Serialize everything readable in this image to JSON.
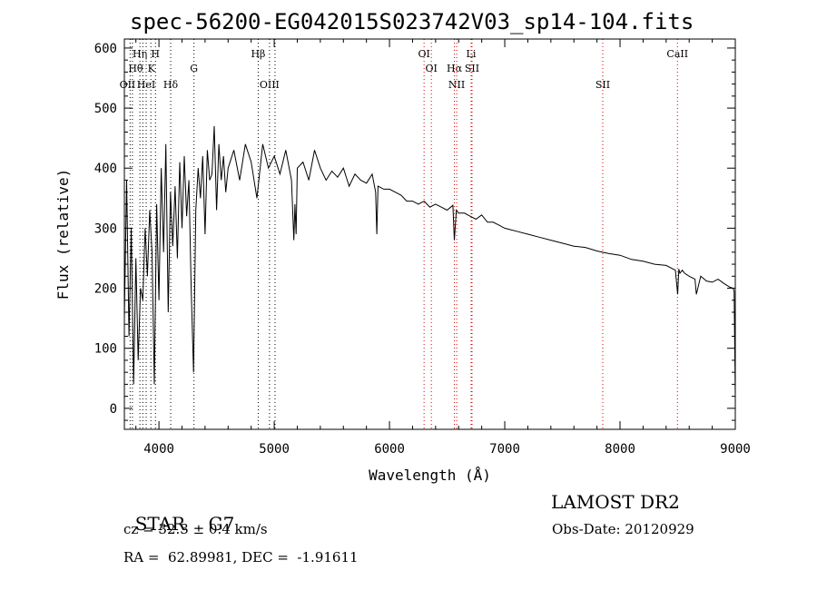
{
  "chart_data": {
    "type": "line",
    "title": "spec-56200-EG042015S023742V03_sp14-104.fits",
    "xlabel": "Wavelength (Å)",
    "ylabel": "Flux (relative)",
    "xlim": [
      3700,
      9000
    ],
    "ylim": [
      -35,
      615
    ],
    "xticks": [
      4000,
      5000,
      6000,
      7000,
      8000,
      9000
    ],
    "yticks": [
      0,
      100,
      200,
      300,
      400,
      500,
      600
    ],
    "grid": false,
    "line_color": "#000000",
    "marker_color": "#cc0000",
    "series": [
      {
        "x": [
          3700,
          3720,
          3740,
          3760,
          3780,
          3800,
          3820,
          3840,
          3860,
          3880,
          3900,
          3920,
          3940,
          3960,
          3980,
          4000,
          4020,
          4040,
          4060,
          4080,
          4100,
          4120,
          4140,
          4160,
          4180,
          4200,
          4220,
          4240,
          4260,
          4280,
          4300,
          4320,
          4340,
          4360,
          4380,
          4400,
          4420,
          4440,
          4460,
          4480,
          4500,
          4520,
          4540,
          4560,
          4580,
          4600,
          4650,
          4700,
          4750,
          4800,
          4850,
          4900,
          4950,
          5000,
          5050,
          5100,
          5150,
          5170,
          5180,
          5190,
          5200,
          5250,
          5300,
          5350,
          5400,
          5450,
          5500,
          5550,
          5600,
          5650,
          5700,
          5750,
          5800,
          5850,
          5880,
          5890,
          5900,
          5950,
          6000,
          6050,
          6100,
          6150,
          6200,
          6250,
          6300,
          6350,
          6400,
          6450,
          6500,
          6550,
          6563,
          6580,
          6600,
          6650,
          6700,
          6750,
          6800,
          6850,
          6900,
          6950,
          7000,
          7100,
          7200,
          7300,
          7400,
          7500,
          7600,
          7700,
          7800,
          7900,
          8000,
          8100,
          8200,
          8300,
          8400,
          8480,
          8500,
          8510,
          8520,
          8540,
          8560,
          8600,
          8650,
          8662,
          8700,
          8750,
          8800,
          8850,
          8900,
          8950,
          8980,
          8990,
          9000
        ],
        "y": [
          150,
          380,
          120,
          300,
          40,
          250,
          80,
          200,
          180,
          300,
          220,
          330,
          260,
          40,
          340,
          180,
          400,
          260,
          440,
          160,
          360,
          270,
          370,
          250,
          410,
          300,
          420,
          320,
          380,
          200,
          60,
          330,
          400,
          350,
          420,
          290,
          430,
          380,
          390,
          470,
          330,
          440,
          380,
          420,
          360,
          400,
          430,
          380,
          440,
          410,
          350,
          440,
          400,
          420,
          390,
          430,
          380,
          280,
          340,
          290,
          400,
          410,
          380,
          430,
          400,
          380,
          395,
          385,
          400,
          370,
          390,
          380,
          375,
          390,
          360,
          290,
          370,
          365,
          365,
          360,
          355,
          345,
          345,
          340,
          345,
          335,
          340,
          335,
          330,
          338,
          280,
          330,
          325,
          325,
          320,
          315,
          322,
          310,
          310,
          305,
          300,
          295,
          290,
          285,
          280,
          275,
          270,
          268,
          262,
          258,
          255,
          248,
          245,
          240,
          238,
          230,
          190,
          232,
          225,
          230,
          225,
          220,
          215,
          190,
          220,
          212,
          210,
          215,
          208,
          202,
          200,
          195,
          20
        ]
      }
    ],
    "lines": [
      {
        "label": "Hη",
        "wavelength": 3835,
        "row": 1
      },
      {
        "label": "H",
        "wavelength": 3969,
        "row": 1
      },
      {
        "label": "Hβ",
        "wavelength": 4861,
        "row": 1
      },
      {
        "label": "OI",
        "wavelength": 6300,
        "row": 1
      },
      {
        "label": "Li",
        "wavelength": 6708,
        "row": 1
      },
      {
        "label": "CaII",
        "wavelength": 8498,
        "row": 1
      },
      {
        "label": "Hθ",
        "wavelength": 3798,
        "row": 2
      },
      {
        "label": "K",
        "wavelength": 3934,
        "row": 2
      },
      {
        "label": "G",
        "wavelength": 4304,
        "row": 2
      },
      {
        "label": "OI",
        "wavelength": 6363,
        "row": 2
      },
      {
        "label": "Hα",
        "wavelength": 6563,
        "row": 2
      },
      {
        "label": "SII",
        "wavelength": 6716,
        "row": 2
      },
      {
        "label": "OII",
        "wavelength": 3727,
        "row": 3
      },
      {
        "label": "HeI",
        "wavelength": 3889,
        "row": 3
      },
      {
        "label": "Hδ",
        "wavelength": 4102,
        "row": 3
      },
      {
        "label": "OIII",
        "wavelength": 4959,
        "row": 3
      },
      {
        "label": "NII",
        "wavelength": 6583,
        "row": 3
      },
      {
        "label": "SII",
        "wavelength": 7850,
        "row": 3
      }
    ],
    "lines_black_extra": [
      3750,
      3770,
      3835,
      3860,
      3889,
      3930,
      3970,
      4102,
      4304,
      4861,
      4959,
      5007
    ]
  },
  "info": {
    "class_label": "STAR",
    "subclass": "G7",
    "survey": "LAMOST DR2",
    "cz": "cz = 32.3 ± 0.4 km/s",
    "obs_date": "Obs-Date: 20120929",
    "coords": "RA =  62.89981, DEC =  -1.91611"
  }
}
